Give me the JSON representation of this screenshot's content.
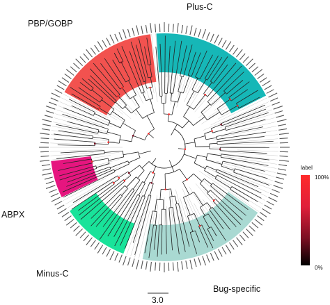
{
  "clades": [
    {
      "name": "PBP/GOBP",
      "color": "#f2524f"
    },
    {
      "name": "Plus-C",
      "color": "#16b7b7"
    },
    {
      "name": "ABPX",
      "color": "#e6157f"
    },
    {
      "name": "Minus-C",
      "color": "#19e39a"
    },
    {
      "name": "Bug-specific",
      "color": "#a9d9d2"
    }
  ],
  "legend": {
    "title": "label",
    "max_label": "100%",
    "min_label": "0%",
    "gradient": [
      "#ff2a2a",
      "#e01f3a",
      "#7a0f22",
      "#000000"
    ]
  },
  "scale_bar": {
    "label": "3.0"
  },
  "tree": {
    "branch_color": "#222222",
    "guide_color": "#c8c8c8"
  }
}
